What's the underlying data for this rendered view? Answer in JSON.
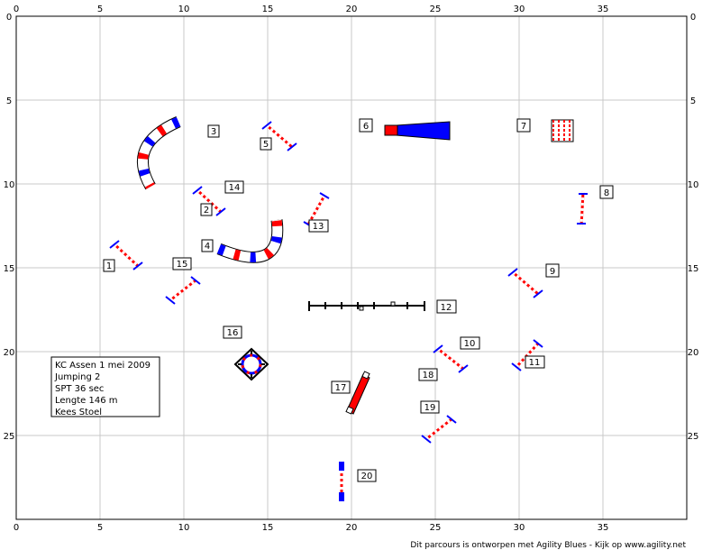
{
  "axes": {
    "top_ticks": [
      "0",
      "5",
      "10",
      "15",
      "20",
      "25",
      "30",
      "35"
    ],
    "bottom_ticks": [
      "0",
      "5",
      "10",
      "15",
      "20",
      "25",
      "30",
      "35"
    ],
    "left_ticks": [
      "0",
      "5",
      "10",
      "15",
      "20",
      "25"
    ],
    "right_ticks": [
      "0",
      "5",
      "10",
      "15",
      "20",
      "25"
    ],
    "x_range_m": [
      0,
      40
    ],
    "y_range_m": [
      0,
      30
    ],
    "grid": true
  },
  "info": {
    "lines": [
      "KC Assen 1 mei 2009",
      "Jumping 2",
      "SPT 36 sec",
      "Lengte 146 m",
      "Kees Stoel"
    ]
  },
  "footer": "Dit parcours is ontworpen met Agility Blues - Kijk op www.agility.net",
  "colors": {
    "blue": "#0000ff",
    "red": "#ff0000",
    "grid": "#c8c8c8"
  },
  "obstacle_numbers": [
    "1",
    "2",
    "3",
    "4",
    "5",
    "6",
    "7",
    "8",
    "9",
    "10",
    "11",
    "12",
    "13",
    "14",
    "15",
    "16",
    "17",
    "18",
    "19",
    "20"
  ]
}
